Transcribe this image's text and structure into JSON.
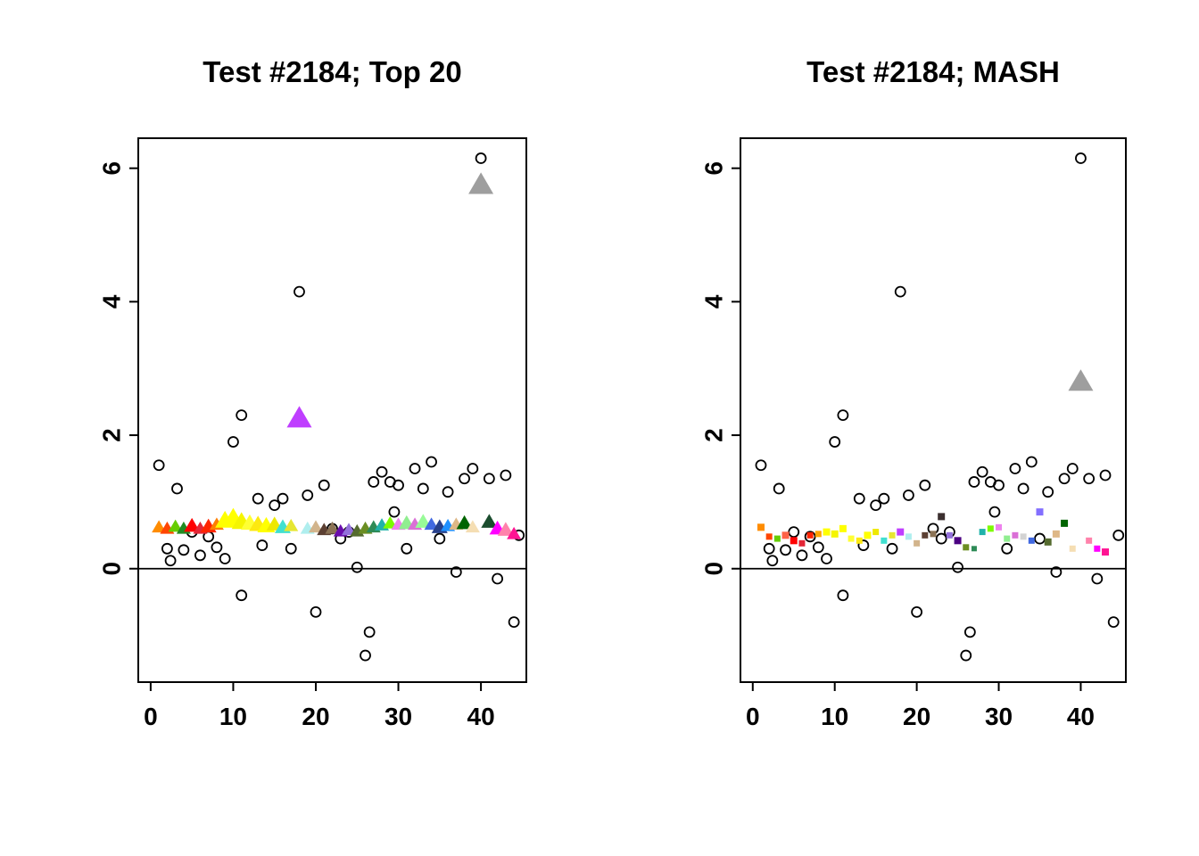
{
  "figure": {
    "background": "#ffffff",
    "description": "Two R-style scatter plots comparing effect estimates for Test #2184"
  },
  "chart_shared": {
    "circles": [
      [
        1,
        1.55
      ],
      [
        2,
        0.3
      ],
      [
        2.4,
        0.12
      ],
      [
        3.2,
        1.2
      ],
      [
        4,
        0.28
      ],
      [
        5,
        0.55
      ],
      [
        6,
        0.2
      ],
      [
        7,
        0.48
      ],
      [
        8,
        0.32
      ],
      [
        9,
        0.15
      ],
      [
        10,
        1.9
      ],
      [
        11,
        2.3
      ],
      [
        11,
        -0.4
      ],
      [
        13,
        1.05
      ],
      [
        13.5,
        0.35
      ],
      [
        15,
        0.95
      ],
      [
        16,
        1.05
      ],
      [
        17,
        0.3
      ],
      [
        18,
        4.15
      ],
      [
        19,
        1.1
      ],
      [
        20,
        -0.65
      ],
      [
        21,
        1.25
      ],
      [
        22,
        0.6
      ],
      [
        23,
        0.45
      ],
      [
        24,
        0.55
      ],
      [
        25,
        0.02
      ],
      [
        26,
        -1.3
      ],
      [
        26.5,
        -0.95
      ],
      [
        27,
        1.3
      ],
      [
        28,
        1.45
      ],
      [
        29,
        1.3
      ],
      [
        29.5,
        0.85
      ],
      [
        30,
        1.25
      ],
      [
        31,
        0.3
      ],
      [
        32,
        1.5
      ],
      [
        33,
        1.2
      ],
      [
        34,
        1.6
      ],
      [
        35,
        0.45
      ],
      [
        36,
        1.15
      ],
      [
        37,
        -0.05
      ],
      [
        38,
        1.35
      ],
      [
        39,
        1.5
      ],
      [
        40,
        6.15
      ],
      [
        41,
        1.35
      ],
      [
        42,
        -0.15
      ],
      [
        43,
        1.4
      ],
      [
        44,
        -0.8
      ],
      [
        44.6,
        0.5
      ]
    ]
  },
  "chart_data": [
    {
      "type": "scatter",
      "title": "Test #2184; Top 20",
      "xlim": [
        -1.5,
        45.5
      ],
      "ylim": [
        -1.7,
        6.45
      ],
      "xticks": [
        0,
        10,
        20,
        30,
        40
      ],
      "yticks": [
        0,
        2,
        4,
        6
      ],
      "hline": 0,
      "grid": false,
      "series": [
        {
          "name": "observed-values",
          "marker": "circle",
          "stroke": "#000000",
          "ref": "circles"
        },
        {
          "name": "top20-effect-estimates",
          "marker": "triangle",
          "points": [
            {
              "x": 1,
              "y": 0.62,
              "c": "#FF8C00",
              "s": 8
            },
            {
              "x": 2,
              "y": 0.6,
              "c": "#FF4500",
              "s": 8
            },
            {
              "x": 3,
              "y": 0.63,
              "c": "#66CD00",
              "s": 8
            },
            {
              "x": 4,
              "y": 0.6,
              "c": "#228B22",
              "s": 8
            },
            {
              "x": 5,
              "y": 0.64,
              "c": "#FF0000",
              "s": 9
            },
            {
              "x": 6,
              "y": 0.6,
              "c": "#E32636",
              "s": 8
            },
            {
              "x": 7,
              "y": 0.63,
              "c": "#FF2400",
              "s": 9
            },
            {
              "x": 8,
              "y": 0.66,
              "c": "#FF7F00",
              "s": 8
            },
            {
              "x": 9,
              "y": 0.72,
              "c": "#FFFF00",
              "s": 11
            },
            {
              "x": 10,
              "y": 0.75,
              "c": "#FFFF00",
              "s": 12
            },
            {
              "x": 11,
              "y": 0.7,
              "c": "#F5F500",
              "s": 11
            },
            {
              "x": 12,
              "y": 0.68,
              "c": "#FFFF33",
              "s": 10
            },
            {
              "x": 13,
              "y": 0.66,
              "c": "#FDE910",
              "s": 10
            },
            {
              "x": 14,
              "y": 0.64,
              "c": "#FFFF00",
              "s": 10
            },
            {
              "x": 15,
              "y": 0.66,
              "c": "#EEE800",
              "s": 9
            },
            {
              "x": 16,
              "y": 0.62,
              "c": "#40E0D0",
              "s": 9
            },
            {
              "x": 17,
              "y": 0.64,
              "c": "#E6E632",
              "s": 8
            },
            {
              "x": 18,
              "y": 2.25,
              "c": "#BF3EFF",
              "s": 14
            },
            {
              "x": 19,
              "y": 0.6,
              "c": "#AFEEEE",
              "s": 8
            },
            {
              "x": 20,
              "y": 0.62,
              "c": "#D2B48C",
              "s": 8
            },
            {
              "x": 21,
              "y": 0.58,
              "c": "#5C4033",
              "s": 8
            },
            {
              "x": 22,
              "y": 0.6,
              "c": "#8B7355",
              "s": 8
            },
            {
              "x": 23,
              "y": 0.56,
              "c": "#6A0DAD",
              "s": 8
            },
            {
              "x": 24,
              "y": 0.58,
              "c": "#9370DB",
              "s": 8
            },
            {
              "x": 25,
              "y": 0.56,
              "c": "#556B2F",
              "s": 8
            },
            {
              "x": 26,
              "y": 0.6,
              "c": "#6B8E23",
              "s": 8
            },
            {
              "x": 27,
              "y": 0.62,
              "c": "#2E8B57",
              "s": 8
            },
            {
              "x": 28,
              "y": 0.65,
              "c": "#20B2AA",
              "s": 8
            },
            {
              "x": 29,
              "y": 0.68,
              "c": "#7CFC00",
              "s": 8
            },
            {
              "x": 30,
              "y": 0.66,
              "c": "#EE82EE",
              "s": 8
            },
            {
              "x": 31,
              "y": 0.68,
              "c": "#90EE90",
              "s": 9
            },
            {
              "x": 32,
              "y": 0.66,
              "c": "#DA70D6",
              "s": 8
            },
            {
              "x": 33,
              "y": 0.7,
              "c": "#98FB98",
              "s": 9
            },
            {
              "x": 34,
              "y": 0.66,
              "c": "#4169E1",
              "s": 8
            },
            {
              "x": 35,
              "y": 0.62,
              "c": "#27408B",
              "s": 9
            },
            {
              "x": 36,
              "y": 0.64,
              "c": "#1E90FF",
              "s": 8
            },
            {
              "x": 37,
              "y": 0.66,
              "c": "#DEB887",
              "s": 8
            },
            {
              "x": 38,
              "y": 0.68,
              "c": "#006400",
              "s": 9
            },
            {
              "x": 39,
              "y": 0.62,
              "c": "#F5DEB3",
              "s": 8
            },
            {
              "x": 40,
              "y": 5.75,
              "c": "#9E9E9E",
              "s": 14
            },
            {
              "x": 41,
              "y": 0.7,
              "c": "#1B4D2E",
              "s": 9
            },
            {
              "x": 42,
              "y": 0.6,
              "c": "#FF00FF",
              "s": 9
            },
            {
              "x": 43,
              "y": 0.58,
              "c": "#FF82AB",
              "s": 9
            },
            {
              "x": 44,
              "y": 0.52,
              "c": "#FF1493",
              "s": 8
            }
          ]
        }
      ]
    },
    {
      "type": "scatter",
      "title": "Test #2184; MASH",
      "xlim": [
        -1.5,
        45.5
      ],
      "ylim": [
        -1.7,
        6.45
      ],
      "xticks": [
        0,
        10,
        20,
        30,
        40
      ],
      "yticks": [
        0,
        2,
        4,
        6
      ],
      "hline": 0,
      "grid": false,
      "series": [
        {
          "name": "observed-values",
          "marker": "circle",
          "stroke": "#000000",
          "ref": "circles"
        },
        {
          "name": "mash-effect-estimates",
          "marker": "square",
          "points": [
            {
              "x": 1,
              "y": 0.62,
              "c": "#FF8C00",
              "s": 8
            },
            {
              "x": 2,
              "y": 0.48,
              "c": "#FF4500",
              "s": 7
            },
            {
              "x": 3,
              "y": 0.45,
              "c": "#66CD00",
              "s": 7
            },
            {
              "x": 4,
              "y": 0.5,
              "c": "#FF6347",
              "s": 8
            },
            {
              "x": 5,
              "y": 0.42,
              "c": "#FF0000",
              "s": 8
            },
            {
              "x": 6,
              "y": 0.38,
              "c": "#E32636",
              "s": 7
            },
            {
              "x": 7,
              "y": 0.5,
              "c": "#FF2400",
              "s": 7
            },
            {
              "x": 8,
              "y": 0.52,
              "c": "#FFA500",
              "s": 7
            },
            {
              "x": 9,
              "y": 0.55,
              "c": "#FFFF00",
              "s": 8
            },
            {
              "x": 10,
              "y": 0.52,
              "c": "#F5F500",
              "s": 8
            },
            {
              "x": 11,
              "y": 0.6,
              "c": "#FFFF00",
              "s": 8
            },
            {
              "x": 12,
              "y": 0.45,
              "c": "#FFFF33",
              "s": 7
            },
            {
              "x": 13,
              "y": 0.42,
              "c": "#FDE910",
              "s": 7
            },
            {
              "x": 14,
              "y": 0.5,
              "c": "#FFFF00",
              "s": 8
            },
            {
              "x": 15,
              "y": 0.55,
              "c": "#EEE800",
              "s": 7
            },
            {
              "x": 16,
              "y": 0.42,
              "c": "#40E0D0",
              "s": 7
            },
            {
              "x": 17,
              "y": 0.5,
              "c": "#E6E632",
              "s": 7
            },
            {
              "x": 18,
              "y": 0.55,
              "c": "#BF3EFF",
              "s": 8
            },
            {
              "x": 19,
              "y": 0.48,
              "c": "#AFEEEE",
              "s": 7
            },
            {
              "x": 20,
              "y": 0.38,
              "c": "#D2B48C",
              "s": 7
            },
            {
              "x": 21,
              "y": 0.5,
              "c": "#5C4033",
              "s": 7
            },
            {
              "x": 22,
              "y": 0.52,
              "c": "#8B7355",
              "s": 7
            },
            {
              "x": 23,
              "y": 0.78,
              "c": "#3B2F2F",
              "s": 8
            },
            {
              "x": 24,
              "y": 0.5,
              "c": "#9370DB",
              "s": 7
            },
            {
              "x": 25,
              "y": 0.42,
              "c": "#4B0082",
              "s": 8
            },
            {
              "x": 26,
              "y": 0.32,
              "c": "#6B8E23",
              "s": 7
            },
            {
              "x": 27,
              "y": 0.3,
              "c": "#2E8B57",
              "s": 6
            },
            {
              "x": 28,
              "y": 0.55,
              "c": "#20B2AA",
              "s": 7
            },
            {
              "x": 29,
              "y": 0.6,
              "c": "#7CFC00",
              "s": 7
            },
            {
              "x": 30,
              "y": 0.62,
              "c": "#EE82EE",
              "s": 7
            },
            {
              "x": 31,
              "y": 0.45,
              "c": "#90EE90",
              "s": 7
            },
            {
              "x": 32,
              "y": 0.5,
              "c": "#DA70D6",
              "s": 7
            },
            {
              "x": 33,
              "y": 0.48,
              "c": "#D3D3D3",
              "s": 7
            },
            {
              "x": 34,
              "y": 0.42,
              "c": "#4169E1",
              "s": 7
            },
            {
              "x": 35,
              "y": 0.85,
              "c": "#836FFF",
              "s": 8
            },
            {
              "x": 36,
              "y": 0.4,
              "c": "#556B2F",
              "s": 8
            },
            {
              "x": 37,
              "y": 0.52,
              "c": "#DEB887",
              "s": 8
            },
            {
              "x": 38,
              "y": 0.68,
              "c": "#006400",
              "s": 8
            },
            {
              "x": 39,
              "y": 0.3,
              "c": "#F5DEB3",
              "s": 7
            },
            {
              "x": 41,
              "y": 0.42,
              "c": "#FF82AB",
              "s": 7
            },
            {
              "x": 42,
              "y": 0.3,
              "c": "#FF00FF",
              "s": 7
            },
            {
              "x": 43,
              "y": 0.25,
              "c": "#FF1493",
              "s": 8
            }
          ]
        },
        {
          "name": "highlighted-estimate",
          "marker": "triangle",
          "points": [
            {
              "x": 40,
              "y": 2.8,
              "c": "#9E9E9E",
              "s": 14
            }
          ]
        }
      ]
    }
  ],
  "style": {
    "axis_color": "#000000",
    "circle_stroke": "#000000",
    "title_fontsize": 33,
    "axis_fontsize": 28
  }
}
